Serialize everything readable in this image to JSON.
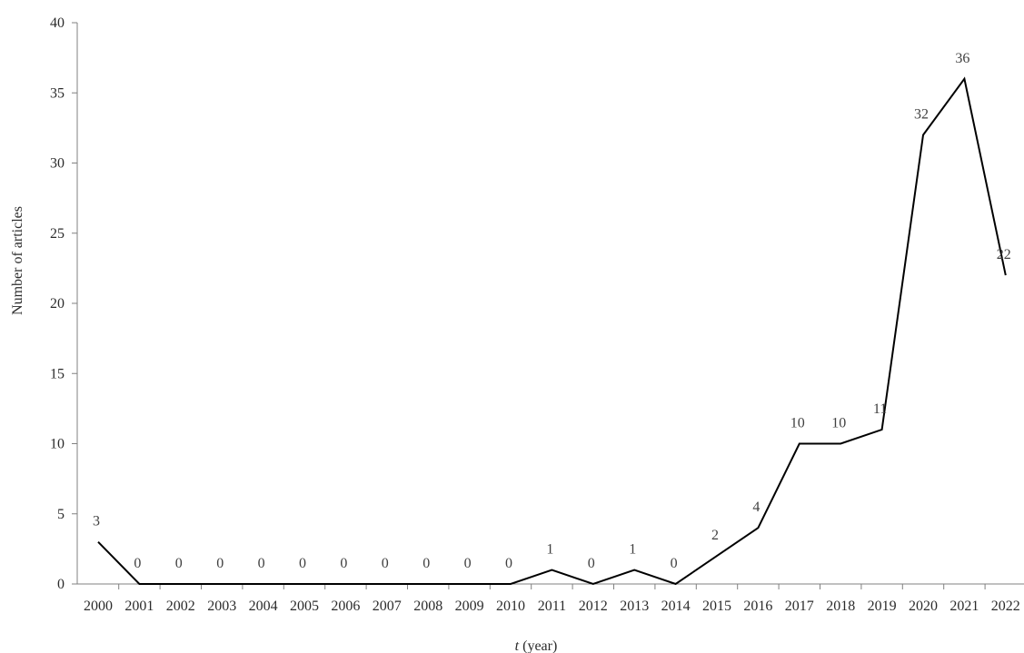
{
  "chart_data": {
    "type": "line",
    "title": "",
    "xlabel": "(year)",
    "xlabel_var": "t",
    "ylabel": "Number of articles",
    "ylim": [
      0,
      40
    ],
    "yticks": [
      0,
      5,
      10,
      15,
      20,
      25,
      30,
      35,
      40
    ],
    "grid": false,
    "legend": "none",
    "line_color": "#000000",
    "categories": [
      "2000",
      "2001",
      "2002",
      "2003",
      "2004",
      "2005",
      "2006",
      "2007",
      "2008",
      "2009",
      "2010",
      "2011",
      "2012",
      "2013",
      "2014",
      "2015",
      "2016",
      "2017",
      "2018",
      "2019",
      "2020",
      "2021",
      "2022"
    ],
    "series": [
      {
        "values": [
          3,
          0,
          0,
          0,
          0,
          0,
          0,
          0,
          0,
          0,
          0,
          1,
          0,
          1,
          0,
          2,
          4,
          10,
          10,
          11,
          32,
          36,
          22
        ]
      }
    ]
  }
}
